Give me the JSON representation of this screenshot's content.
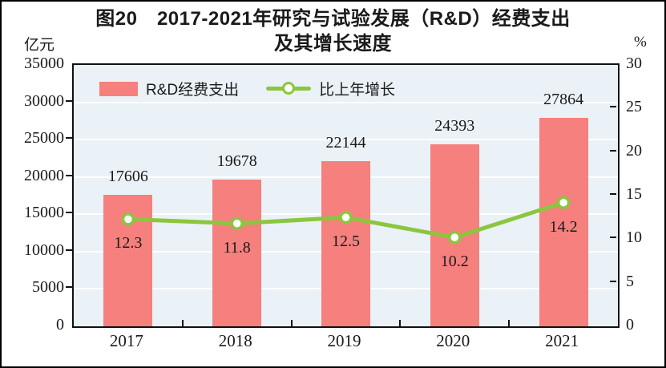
{
  "title": {
    "line1": "图20　2017-2021年研究与试验发展（R&D）经费支出",
    "line2": "及其增长速度"
  },
  "axis_units": {
    "left": "亿元",
    "right": "%"
  },
  "legend": {
    "bar_label": "R&D经费支出",
    "line_label": "比上年增长"
  },
  "colors": {
    "bar": "#f5807d",
    "line": "#8cc63e",
    "marker_fill": "#ffffff",
    "plot_bg": "#eaf1f7",
    "grid": "#ffffff",
    "axis": "#111111",
    "text": "#1a1a1a"
  },
  "chart_data": {
    "type": "bar+line",
    "title": "图20　2017-2021年研究与试验发展（R&D）经费支出及其增长速度",
    "categories": [
      "2017",
      "2018",
      "2019",
      "2020",
      "2021"
    ],
    "series": [
      {
        "name": "R&D经费支出",
        "type": "bar",
        "axis": "left",
        "unit": "亿元",
        "values": [
          17606,
          19678,
          22144,
          24393,
          27864
        ]
      },
      {
        "name": "比上年增长",
        "type": "line",
        "axis": "right",
        "unit": "%",
        "values": [
          12.3,
          11.8,
          12.5,
          10.2,
          14.2
        ]
      }
    ],
    "left_axis": {
      "unit": "亿元",
      "min": 0,
      "max": 35000,
      "step": 5000,
      "ticks": [
        35000,
        30000,
        25000,
        20000,
        15000,
        10000,
        5000,
        0
      ]
    },
    "right_axis": {
      "unit": "%",
      "min": 0,
      "max": 30,
      "step": 5,
      "ticks": [
        30,
        25,
        20,
        15,
        10,
        5,
        0
      ]
    },
    "grid": "horizontal",
    "legend_position": "top-left-inside",
    "data_labels": {
      "bar": "above",
      "line": "below"
    }
  }
}
